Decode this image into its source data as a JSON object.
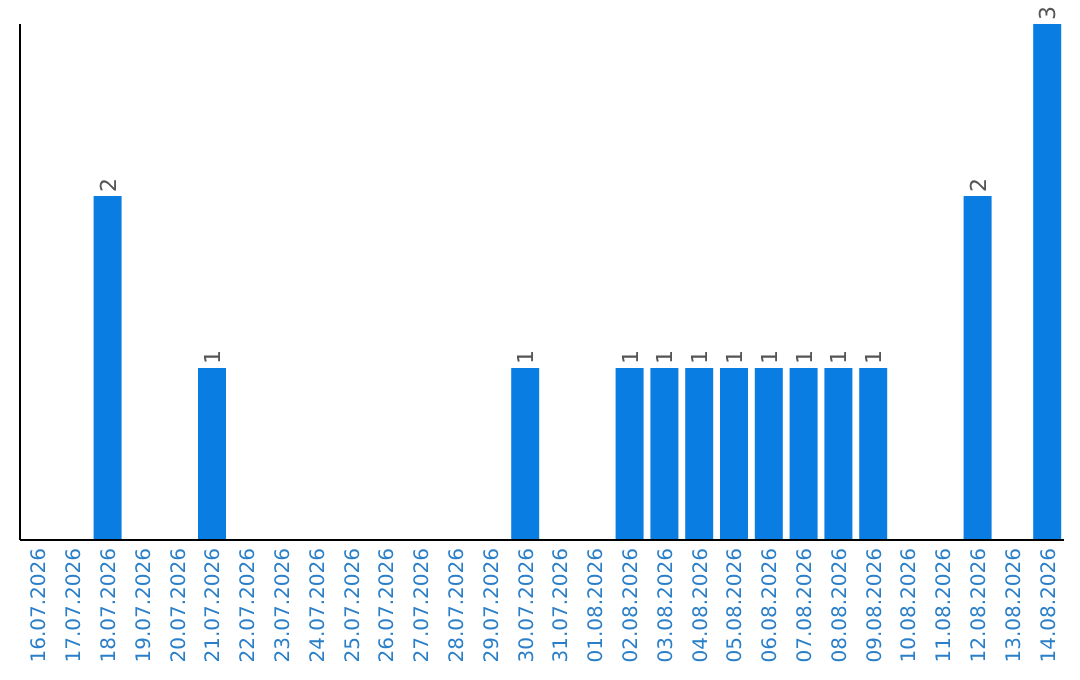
{
  "chart_data": {
    "type": "bar",
    "categories": [
      "16.07.2026",
      "17.07.2026",
      "18.07.2026",
      "19.07.2026",
      "20.07.2026",
      "21.07.2026",
      "22.07.2026",
      "23.07.2026",
      "24.07.2026",
      "25.07.2026",
      "26.07.2026",
      "27.07.2026",
      "28.07.2026",
      "29.07.2026",
      "30.07.2026",
      "31.07.2026",
      "01.08.2026",
      "02.08.2026",
      "03.08.2026",
      "04.08.2026",
      "05.08.2026",
      "06.08.2026",
      "07.08.2026",
      "08.08.2026",
      "09.08.2026",
      "10.08.2026",
      "11.08.2026",
      "12.08.2026",
      "13.08.2026",
      "14.08.2026"
    ],
    "values": [
      0,
      0,
      2,
      0,
      0,
      1,
      0,
      0,
      0,
      0,
      0,
      0,
      0,
      0,
      1,
      0,
      0,
      1,
      1,
      1,
      1,
      1,
      1,
      1,
      1,
      0,
      0,
      2,
      0,
      3
    ],
    "value_labels": [
      null,
      null,
      "2",
      null,
      null,
      "1",
      null,
      null,
      null,
      null,
      null,
      null,
      null,
      null,
      "1",
      null,
      null,
      "1",
      "1",
      "1",
      "1",
      "1",
      "1",
      "1",
      "1",
      null,
      null,
      "2",
      null,
      "3"
    ],
    "color": "#0a7de3",
    "grid": false
  }
}
